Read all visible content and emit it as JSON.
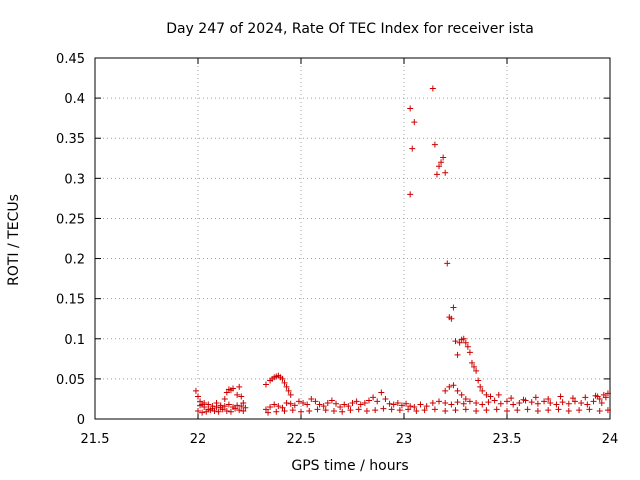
{
  "chart_data": {
    "type": "scatter",
    "title": "Day 247 of 2024, Rate Of TEC Index for receiver ista",
    "xlabel": "GPS time / hours",
    "ylabel": "ROTI / TECUs",
    "xlim": [
      21.5,
      24
    ],
    "ylim": [
      0,
      0.45
    ],
    "xticks": [
      21.5,
      22,
      22.5,
      23,
      23.5,
      24
    ],
    "xtick_labels": [
      "21.5",
      "22",
      "22.5",
      "23",
      "23.5",
      "24"
    ],
    "yticks": [
      0,
      0.05,
      0.1,
      0.15,
      0.2,
      0.25,
      0.3,
      0.35,
      0.4,
      0.45
    ],
    "ytick_labels": [
      "0",
      "0.05",
      "0.1",
      "0.15",
      "0.2",
      "0.25",
      "0.3",
      "0.35",
      "0.4",
      "0.45"
    ],
    "grid": true,
    "marker": "+",
    "color": "#cc0000",
    "series": [
      {
        "name": "ROTI",
        "points": [
          [
            21.99,
            0.035
          ],
          [
            22.0,
            0.028
          ],
          [
            22.01,
            0.022
          ],
          [
            22.02,
            0.018
          ],
          [
            22.03,
            0.015
          ],
          [
            22.05,
            0.012
          ],
          [
            22.07,
            0.016
          ],
          [
            22.09,
            0.02
          ],
          [
            22.11,
            0.014
          ],
          [
            22.13,
            0.025
          ],
          [
            22.14,
            0.033
          ],
          [
            22.15,
            0.037
          ],
          [
            22.16,
            0.036
          ],
          [
            22.17,
            0.038
          ],
          [
            22.19,
            0.03
          ],
          [
            22.2,
            0.04
          ],
          [
            22.21,
            0.028
          ],
          [
            22.22,
            0.02
          ],
          [
            22.0,
            0.01
          ],
          [
            22.02,
            0.008
          ],
          [
            22.04,
            0.009
          ],
          [
            22.06,
            0.011
          ],
          [
            22.08,
            0.01
          ],
          [
            22.1,
            0.009
          ],
          [
            22.12,
            0.012
          ],
          [
            22.14,
            0.01
          ],
          [
            22.16,
            0.009
          ],
          [
            22.18,
            0.013
          ],
          [
            22.2,
            0.011
          ],
          [
            22.22,
            0.01
          ],
          [
            22.01,
            0.017
          ],
          [
            22.03,
            0.02
          ],
          [
            22.05,
            0.018
          ],
          [
            22.07,
            0.013
          ],
          [
            22.09,
            0.015
          ],
          [
            22.11,
            0.017
          ],
          [
            22.13,
            0.016
          ],
          [
            22.15,
            0.018
          ],
          [
            22.17,
            0.015
          ],
          [
            22.19,
            0.017
          ],
          [
            22.21,
            0.016
          ],
          [
            22.23,
            0.014
          ],
          [
            22.33,
            0.043
          ],
          [
            22.35,
            0.048
          ],
          [
            22.36,
            0.05
          ],
          [
            22.37,
            0.052
          ],
          [
            22.38,
            0.053
          ],
          [
            22.39,
            0.054
          ],
          [
            22.4,
            0.052
          ],
          [
            22.41,
            0.05
          ],
          [
            22.42,
            0.045
          ],
          [
            22.43,
            0.04
          ],
          [
            22.44,
            0.035
          ],
          [
            22.45,
            0.03
          ],
          [
            22.33,
            0.012
          ],
          [
            22.35,
            0.015
          ],
          [
            22.37,
            0.018
          ],
          [
            22.39,
            0.016
          ],
          [
            22.41,
            0.014
          ],
          [
            22.43,
            0.02
          ],
          [
            22.45,
            0.019
          ],
          [
            22.47,
            0.017
          ],
          [
            22.49,
            0.022
          ],
          [
            22.51,
            0.02
          ],
          [
            22.53,
            0.018
          ],
          [
            22.55,
            0.025
          ],
          [
            22.57,
            0.022
          ],
          [
            22.59,
            0.018
          ],
          [
            22.61,
            0.016
          ],
          [
            22.63,
            0.02
          ],
          [
            22.65,
            0.023
          ],
          [
            22.67,
            0.019
          ],
          [
            22.69,
            0.015
          ],
          [
            22.71,
            0.018
          ],
          [
            22.73,
            0.016
          ],
          [
            22.75,
            0.02
          ],
          [
            22.77,
            0.022
          ],
          [
            22.79,
            0.018
          ],
          [
            22.81,
            0.02
          ],
          [
            22.83,
            0.023
          ],
          [
            22.85,
            0.027
          ],
          [
            22.87,
            0.022
          ],
          [
            22.89,
            0.033
          ],
          [
            22.91,
            0.025
          ],
          [
            22.93,
            0.019
          ],
          [
            22.95,
            0.018
          ],
          [
            22.97,
            0.02
          ],
          [
            22.99,
            0.017
          ],
          [
            23.01,
            0.019
          ],
          [
            23.03,
            0.016
          ],
          [
            22.34,
            0.008
          ],
          [
            22.38,
            0.009
          ],
          [
            22.42,
            0.01
          ],
          [
            22.46,
            0.011
          ],
          [
            22.5,
            0.009
          ],
          [
            22.54,
            0.01
          ],
          [
            22.58,
            0.012
          ],
          [
            22.62,
            0.011
          ],
          [
            22.66,
            0.01
          ],
          [
            22.7,
            0.009
          ],
          [
            22.74,
            0.011
          ],
          [
            22.78,
            0.012
          ],
          [
            22.82,
            0.01
          ],
          [
            22.86,
            0.011
          ],
          [
            22.9,
            0.013
          ],
          [
            22.94,
            0.012
          ],
          [
            22.98,
            0.011
          ],
          [
            23.02,
            0.012
          ],
          [
            23.03,
            0.387
          ],
          [
            23.05,
            0.37
          ],
          [
            23.04,
            0.337
          ],
          [
            23.03,
            0.28
          ],
          [
            23.14,
            0.412
          ],
          [
            23.15,
            0.342
          ],
          [
            23.16,
            0.305
          ],
          [
            23.17,
            0.315
          ],
          [
            23.18,
            0.32
          ],
          [
            23.19,
            0.326
          ],
          [
            23.2,
            0.307
          ],
          [
            23.21,
            0.194
          ],
          [
            23.22,
            0.127
          ],
          [
            23.23,
            0.125
          ],
          [
            23.24,
            0.139
          ],
          [
            23.25,
            0.097
          ],
          [
            23.26,
            0.08
          ],
          [
            23.27,
            0.095
          ],
          [
            23.28,
            0.099
          ],
          [
            23.29,
            0.1
          ],
          [
            23.3,
            0.095
          ],
          [
            23.31,
            0.09
          ],
          [
            23.32,
            0.083
          ],
          [
            23.33,
            0.07
          ],
          [
            23.34,
            0.065
          ],
          [
            23.35,
            0.06
          ],
          [
            23.36,
            0.048
          ],
          [
            23.37,
            0.04
          ],
          [
            23.38,
            0.035
          ],
          [
            23.4,
            0.03
          ],
          [
            23.2,
            0.035
          ],
          [
            23.22,
            0.04
          ],
          [
            23.24,
            0.042
          ],
          [
            23.26,
            0.035
          ],
          [
            23.28,
            0.03
          ],
          [
            23.3,
            0.025
          ],
          [
            23.05,
            0.015
          ],
          [
            23.08,
            0.018
          ],
          [
            23.11,
            0.016
          ],
          [
            23.14,
            0.02
          ],
          [
            23.17,
            0.022
          ],
          [
            23.2,
            0.02
          ],
          [
            23.23,
            0.018
          ],
          [
            23.26,
            0.021
          ],
          [
            23.29,
            0.019
          ],
          [
            23.32,
            0.022
          ],
          [
            23.35,
            0.02
          ],
          [
            23.38,
            0.018
          ],
          [
            23.41,
            0.021
          ],
          [
            23.44,
            0.023
          ],
          [
            23.47,
            0.019
          ],
          [
            23.5,
            0.022
          ],
          [
            23.53,
            0.018
          ],
          [
            23.56,
            0.02
          ],
          [
            23.59,
            0.023
          ],
          [
            23.62,
            0.021
          ],
          [
            23.65,
            0.019
          ],
          [
            23.68,
            0.022
          ],
          [
            23.71,
            0.02
          ],
          [
            23.74,
            0.018
          ],
          [
            23.77,
            0.021
          ],
          [
            23.8,
            0.019
          ],
          [
            23.83,
            0.022
          ],
          [
            23.86,
            0.02
          ],
          [
            23.89,
            0.018
          ],
          [
            23.92,
            0.022
          ],
          [
            23.95,
            0.025
          ],
          [
            23.97,
            0.03
          ],
          [
            23.99,
            0.032
          ],
          [
            23.98,
            0.027
          ],
          [
            23.96,
            0.02
          ],
          [
            23.94,
            0.028
          ],
          [
            23.06,
            0.01
          ],
          [
            23.1,
            0.011
          ],
          [
            23.15,
            0.012
          ],
          [
            23.2,
            0.01
          ],
          [
            23.25,
            0.011
          ],
          [
            23.3,
            0.012
          ],
          [
            23.35,
            0.01
          ],
          [
            23.4,
            0.011
          ],
          [
            23.45,
            0.012
          ],
          [
            23.5,
            0.01
          ],
          [
            23.55,
            0.011
          ],
          [
            23.6,
            0.012
          ],
          [
            23.65,
            0.01
          ],
          [
            23.7,
            0.011
          ],
          [
            23.75,
            0.012
          ],
          [
            23.8,
            0.01
          ],
          [
            23.85,
            0.011
          ],
          [
            23.9,
            0.012
          ],
          [
            23.95,
            0.01
          ],
          [
            23.99,
            0.011
          ],
          [
            23.42,
            0.028
          ],
          [
            23.46,
            0.03
          ],
          [
            23.52,
            0.026
          ],
          [
            23.58,
            0.024
          ],
          [
            23.64,
            0.027
          ],
          [
            23.7,
            0.025
          ],
          [
            23.76,
            0.028
          ],
          [
            23.82,
            0.026
          ],
          [
            23.88,
            0.027
          ],
          [
            23.93,
            0.029
          ]
        ]
      }
    ]
  }
}
